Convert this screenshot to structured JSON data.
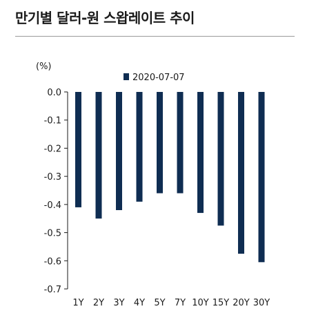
{
  "title": "만기별 달러-원 스왑레이트 추이",
  "chart_data": {
    "type": "bar",
    "title": "만기별 달러-원 스왑레이트 추이",
    "ylabel": "(%)",
    "xlabel": "",
    "categories": [
      "1Y",
      "2Y",
      "3Y",
      "4Y",
      "5Y",
      "7Y",
      "10Y",
      "15Y",
      "20Y",
      "30Y"
    ],
    "series": [
      {
        "name": "2020-07-07",
        "values": [
          -0.41,
          -0.45,
          -0.42,
          -0.39,
          -0.36,
          -0.36,
          -0.43,
          -0.475,
          -0.575,
          -0.605
        ],
        "color": "#0f2d52"
      }
    ],
    "ylim": [
      -0.7,
      0.0
    ],
    "yticks": [
      "0.0",
      "-0.1",
      "-0.2",
      "-0.3",
      "-0.4",
      "-0.5",
      "-0.6",
      "-0.7"
    ],
    "legend_position": "top",
    "grid": false
  }
}
